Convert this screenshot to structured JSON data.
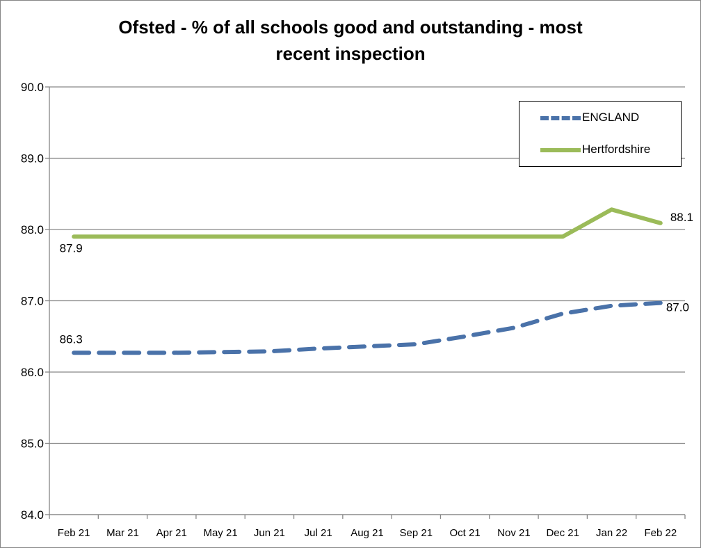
{
  "chart_data": {
    "type": "line",
    "title_lines": [
      "Ofsted - % of all schools good and outstanding - most",
      "recent inspection"
    ],
    "categories": [
      "Feb 21",
      "Mar 21",
      "Apr 21",
      "May 21",
      "Jun 21",
      "Jul 21",
      "Aug 21",
      "Sep 21",
      "Oct 21",
      "Nov 21",
      "Dec 21",
      "Jan 22",
      "Feb 22"
    ],
    "ylim": [
      84.0,
      90.0
    ],
    "yticks": [
      "84.0",
      "85.0",
      "86.0",
      "87.0",
      "88.0",
      "89.0",
      "90.0"
    ],
    "grid": true,
    "legend_position": "top-right",
    "series": [
      {
        "name": "ENGLAND",
        "color": "#4a72a9",
        "dash": true,
        "values": [
          86.27,
          86.27,
          86.27,
          86.28,
          86.29,
          86.33,
          86.36,
          86.39,
          86.5,
          86.62,
          86.82,
          86.93,
          86.97
        ],
        "labels": [
          {
            "index": 0,
            "text": "86.3"
          },
          {
            "index": 12,
            "text": "87.0"
          }
        ]
      },
      {
        "name": "Hertfordshire",
        "color": "#9bbb59",
        "dash": false,
        "values": [
          87.9,
          87.9,
          87.9,
          87.9,
          87.9,
          87.9,
          87.9,
          87.9,
          87.9,
          87.9,
          87.9,
          88.28,
          88.09
        ],
        "labels": [
          {
            "index": 0,
            "text": "87.9"
          },
          {
            "index": 12,
            "text": "88.1"
          }
        ]
      }
    ]
  }
}
